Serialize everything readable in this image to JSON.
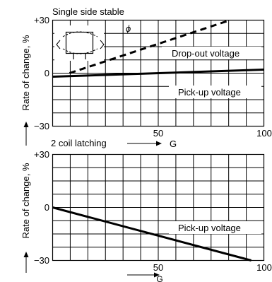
{
  "chart_data": [
    {
      "type": "line",
      "title": "Single side stable",
      "xlabel": "G",
      "ylabel": "Rate of change, %",
      "x_ticks": [
        "50",
        "100"
      ],
      "y_ticks": [
        "+30",
        "0",
        "−30"
      ],
      "xlim": [
        0,
        100
      ],
      "ylim": [
        -30,
        30
      ],
      "grid": true,
      "symbol": "ϕ",
      "series": [
        {
          "name": "Drop-out voltage",
          "style": "dashed",
          "x": [
            8,
            84
          ],
          "y": [
            0,
            30
          ]
        },
        {
          "name": "Pick-up voltage",
          "style": "solid",
          "x": [
            0,
            100
          ],
          "y": [
            -2,
            2
          ]
        }
      ]
    },
    {
      "type": "line",
      "title": "2 coil latching",
      "xlabel": "G",
      "ylabel": "Rate of change, %",
      "x_ticks": [
        "50",
        "100"
      ],
      "y_ticks": [
        "+30",
        "0",
        "−30"
      ],
      "xlim": [
        0,
        100
      ],
      "ylim": [
        -30,
        30
      ],
      "grid": true,
      "series": [
        {
          "name": "Pick-up voltage",
          "style": "solid",
          "x": [
            0,
            94
          ],
          "y": [
            0,
            -30
          ]
        }
      ]
    }
  ]
}
